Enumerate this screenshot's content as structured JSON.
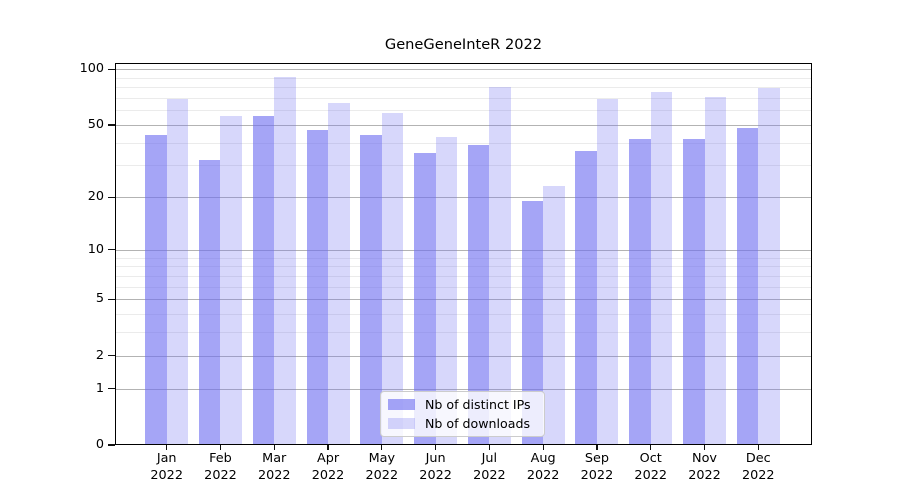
{
  "chart_data": {
    "type": "bar",
    "title": "GeneGeneInteR 2022",
    "categories": [
      "Jan",
      "Feb",
      "Mar",
      "Apr",
      "May",
      "Jun",
      "Jul",
      "Aug",
      "Sep",
      "Oct",
      "Nov",
      "Dec"
    ],
    "year_label": "2022",
    "series": [
      {
        "name": "Nb of distinct IPs",
        "color": "rgba(110,110,240,0.62)",
        "values": [
          44,
          32,
          56,
          47,
          44,
          35,
          39,
          19,
          36,
          42,
          42,
          48
        ]
      },
      {
        "name": "Nb of downloads",
        "color": "rgba(110,110,240,0.28)",
        "values": [
          69,
          56,
          91,
          66,
          58,
          43,
          80,
          23,
          69,
          75,
          71,
          79
        ]
      }
    ],
    "y_axis": {
      "scale": "log10(value+1)",
      "ticks": [
        0,
        1,
        2,
        5,
        10,
        20,
        50,
        100
      ],
      "minor_ticks": [
        3,
        4,
        6,
        7,
        8,
        9,
        30,
        40,
        60,
        70,
        80,
        90
      ],
      "top_value": 108
    },
    "x_axis": {
      "label_format": "month over year"
    },
    "grid": {
      "major_color": "#b3b3b3",
      "minor_color": "#ebebeb"
    },
    "legend": {
      "position": "lower center"
    }
  }
}
